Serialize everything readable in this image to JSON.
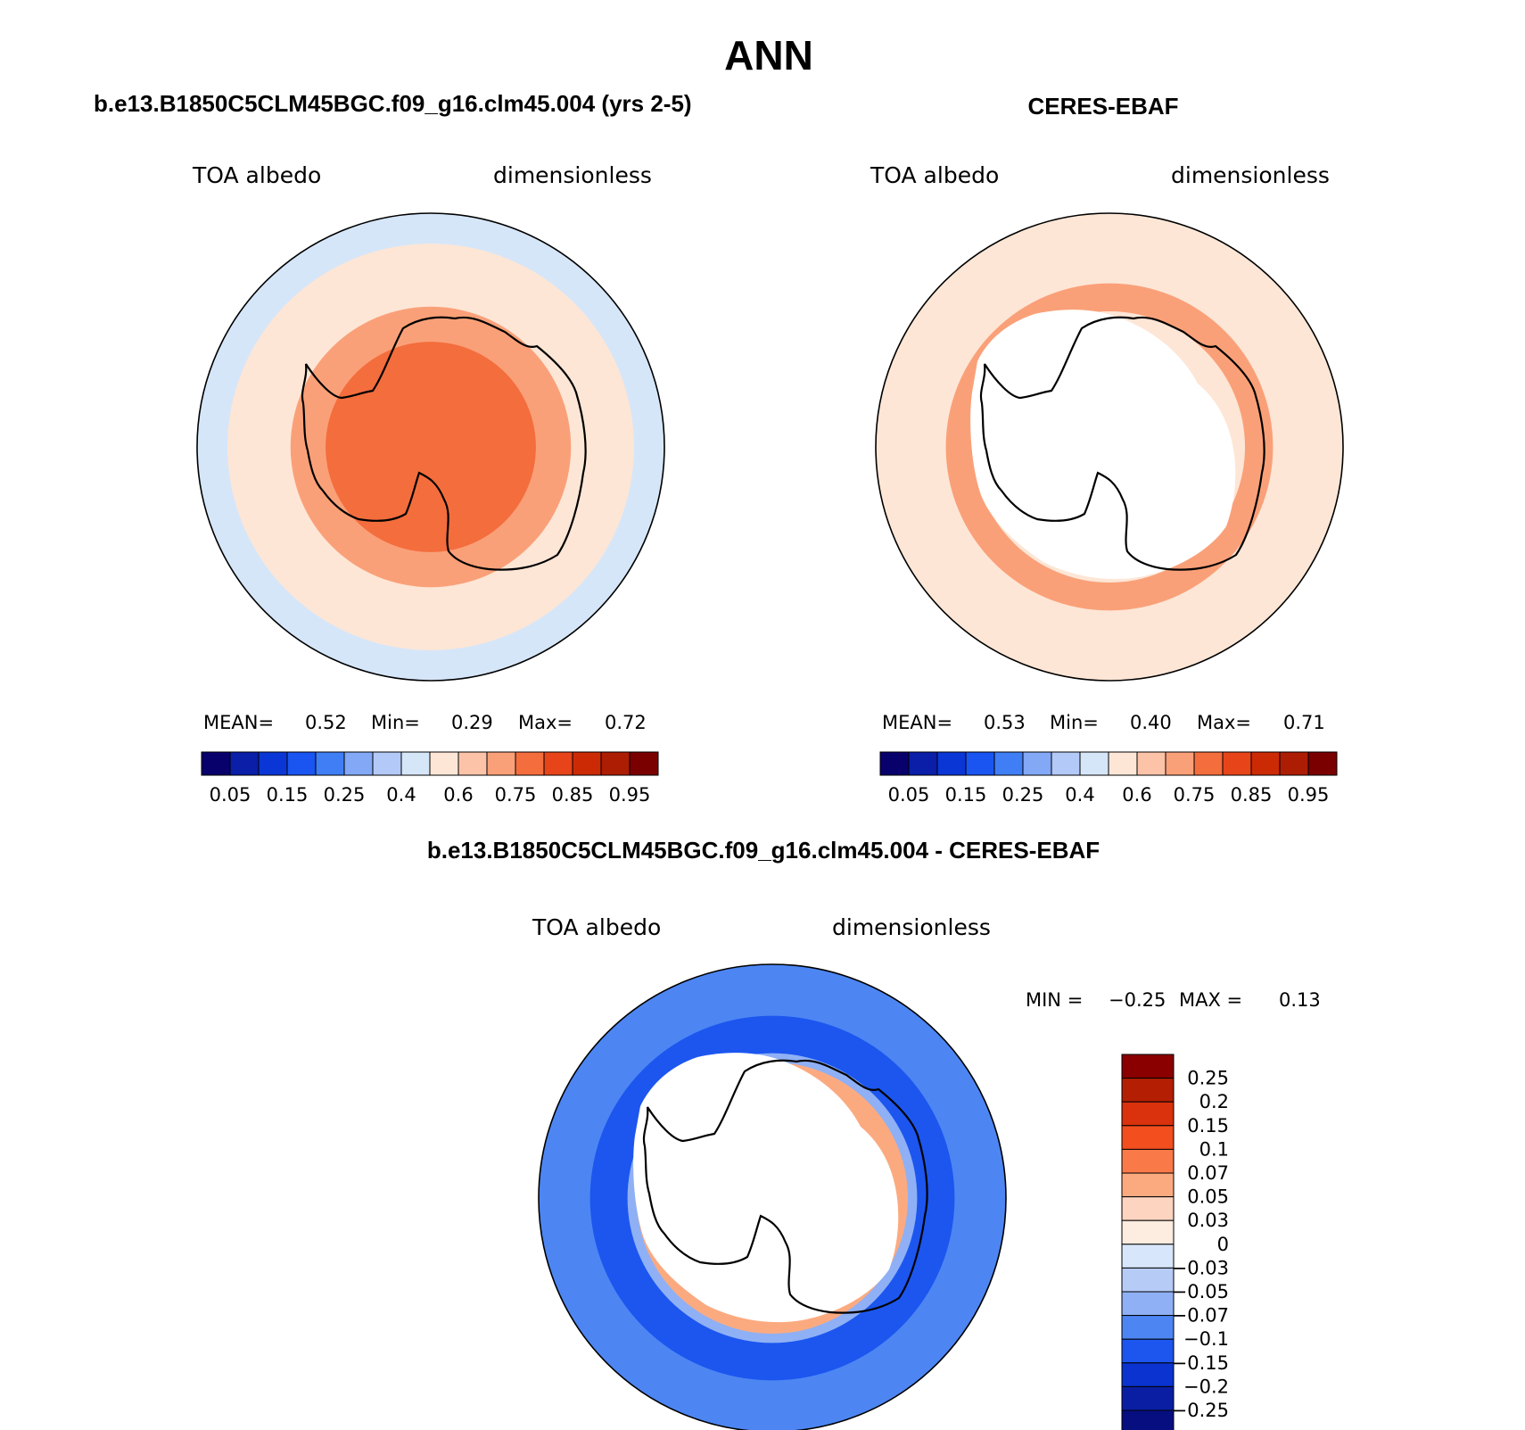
{
  "chart_data": {
    "type": "heatmap",
    "title": "ANN",
    "panels": [
      {
        "id": "model",
        "title": "b.e13.B1850C5CLM45BGC.f09_g16.clm45.004 (yrs 2-5)",
        "variable": "TOA albedo",
        "units": "dimensionless",
        "projection": "south-polar-stereographic",
        "stats": {
          "mean_label": "MEAN=",
          "mean": "0.52",
          "min_label": "Min=",
          "min": "0.29",
          "max_label": "Max=",
          "max": "0.72"
        },
        "rings": [
          {
            "value": 0.45,
            "radius": 1.0
          },
          {
            "value": 0.5,
            "radius": 0.87
          },
          {
            "value": 0.55,
            "radius": 0.7
          },
          {
            "value": 0.65,
            "radius": 0.6
          },
          {
            "value": 0.7,
            "radius": 0.45
          }
        ],
        "continent_mask": false
      },
      {
        "id": "obs",
        "title": "CERES-EBAF",
        "variable": "TOA albedo",
        "units": "dimensionless",
        "projection": "south-polar-stereographic",
        "stats": {
          "mean_label": "MEAN=",
          "mean": "0.53",
          "min_label": "Min=",
          "min": "0.40",
          "max_label": "Max=",
          "max": "0.71"
        },
        "rings": [
          {
            "value": 0.5,
            "radius": 1.0
          },
          {
            "value": 0.55,
            "radius": 0.85
          },
          {
            "value": 0.65,
            "radius": 0.7
          },
          {
            "value": 0.55,
            "radius": 0.58
          }
        ],
        "continent_mask": true
      }
    ],
    "abs_colorbar": {
      "levels": [
        "0.05",
        "0.15",
        "0.25",
        "0.4",
        "0.6",
        "0.75",
        "0.85",
        "0.95"
      ],
      "colors": [
        "#08006b",
        "#0a1ea8",
        "#0b36d6",
        "#1a55f2",
        "#3f7ef5",
        "#82a8f6",
        "#b3c9f7",
        "#d6e6f9",
        "#fde6d6",
        "#fdc3a8",
        "#faa078",
        "#f46d3d",
        "#e8441a",
        "#cc2a05",
        "#ad1d04",
        "#7a0000"
      ]
    },
    "diff_panel": {
      "title": "b.e13.B1850C5CLM45BGC.f09_g16.clm45.004 - CERES-EBAF",
      "variable": "TOA albedo",
      "units": "dimensionless",
      "stats": {
        "min_label": "MIN =",
        "min": "−0.25",
        "max_label": "MAX =",
        "max": "0.13"
      },
      "rings": [
        {
          "value": -0.1,
          "radius": 1.0
        },
        {
          "value": -0.15,
          "radius": 0.78
        },
        {
          "value": -0.07,
          "radius": 0.62
        },
        {
          "value": 0.05,
          "radius": 0.58
        }
      ],
      "continent_mask": true,
      "colorbar": {
        "levels": [
          "0.25",
          "0.2",
          "0.15",
          "0.1",
          "0.07",
          "0.05",
          "0.03",
          "0",
          "−0.03",
          "−0.05",
          "−0.07",
          "−0.1",
          "−0.15",
          "−0.2",
          "−0.25"
        ],
        "colors": [
          "#8a0000",
          "#b41f03",
          "#d9320c",
          "#f24e1e",
          "#f97a48",
          "#fbaa80",
          "#fdd4bf",
          "#fdece0",
          "#d7e6fa",
          "#b6ccf7",
          "#8fb0f5",
          "#4d86f3",
          "#1c56ef",
          "#0a33cf",
          "#0a1ea3",
          "#070e80"
        ]
      }
    }
  }
}
